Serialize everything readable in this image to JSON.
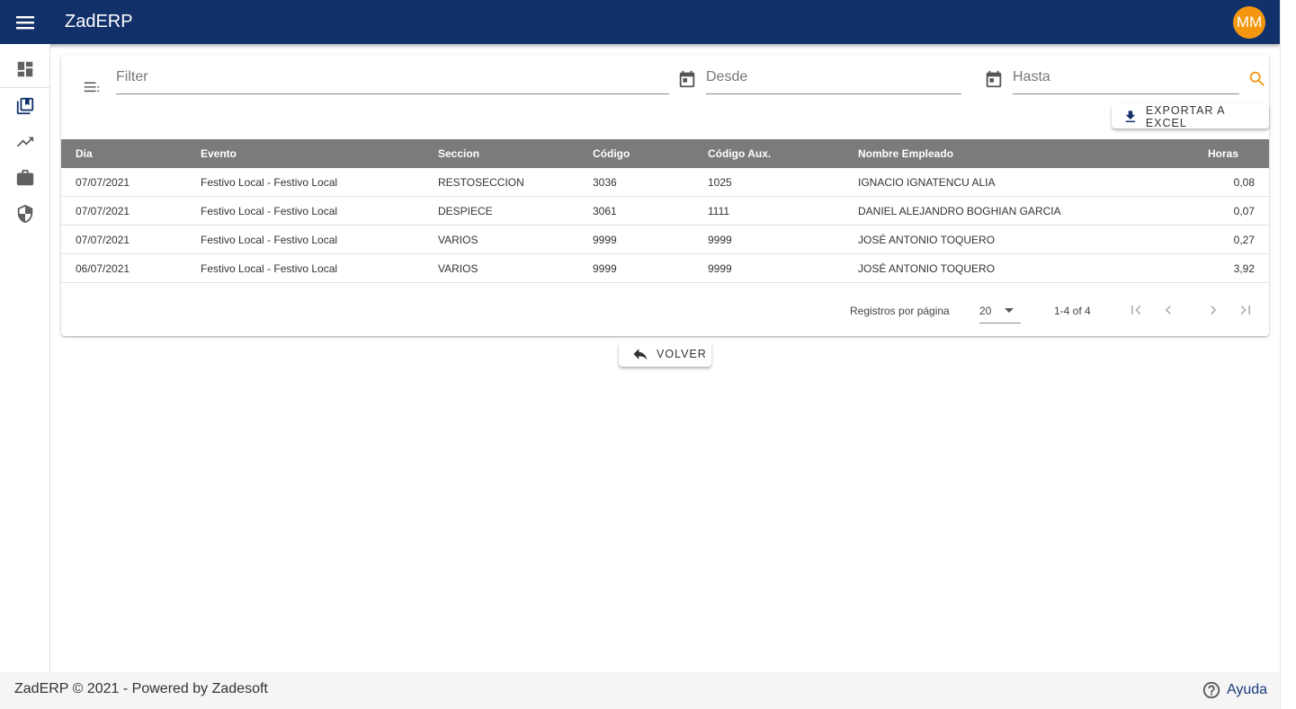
{
  "app": {
    "title": "ZadERP",
    "user_initials": "MM"
  },
  "colors": {
    "topbar": "#12316b",
    "accent": "#f4970f",
    "table_header": "#7b7b7b"
  },
  "sidebar": {
    "items": [
      {
        "icon": "dashboard-icon"
      },
      {
        "icon": "library-books-icon"
      },
      {
        "icon": "trending-up-icon"
      },
      {
        "icon": "briefcase-icon"
      },
      {
        "icon": "shield-icon"
      }
    ]
  },
  "filters": {
    "filter_placeholder": "Filter",
    "desde_placeholder": "Desde",
    "hasta_placeholder": "Hasta"
  },
  "toolbar": {
    "export_label": "EXPORTAR A EXCEL"
  },
  "table": {
    "headers": {
      "dia": "Dia",
      "evento": "Evento",
      "seccion": "Seccion",
      "codigo": "Código",
      "codigo_aux": "Código Aux.",
      "nombre": "Nombre Empleado",
      "horas": "Horas"
    },
    "rows": [
      {
        "dia": "07/07/2021",
        "evento": "Festivo Local - Festivo Local",
        "seccion": "RESTOSECCION",
        "codigo": "3036",
        "codigo_aux": "1025",
        "nombre": "IGNACIO IGNATENCU ALIA",
        "horas": "0,08"
      },
      {
        "dia": "07/07/2021",
        "evento": "Festivo Local - Festivo Local",
        "seccion": "DESPIECE",
        "codigo": "3061",
        "codigo_aux": "1111",
        "nombre": "DANIEL ALEJANDRO BOGHIAN GARCIA",
        "horas": "0,07"
      },
      {
        "dia": "07/07/2021",
        "evento": "Festivo Local - Festivo Local",
        "seccion": "VARIOS",
        "codigo": "9999",
        "codigo_aux": "9999",
        "nombre": "JOSÉ ANTONIO TOQUERO",
        "horas": "0,27"
      },
      {
        "dia": "06/07/2021",
        "evento": "Festivo Local - Festivo Local",
        "seccion": "VARIOS",
        "codigo": "9999",
        "codigo_aux": "9999",
        "nombre": "JOSÉ ANTONIO TOQUERO",
        "horas": "3,92"
      }
    ]
  },
  "paginator": {
    "label": "Registros por página",
    "page_size": "20",
    "range": "1-4 of 4"
  },
  "actions": {
    "volver_label": "VOLVER"
  },
  "footer": {
    "copyright": "ZadERP © 2021 - Powered by Zadesoft",
    "help_label": "Ayuda"
  }
}
